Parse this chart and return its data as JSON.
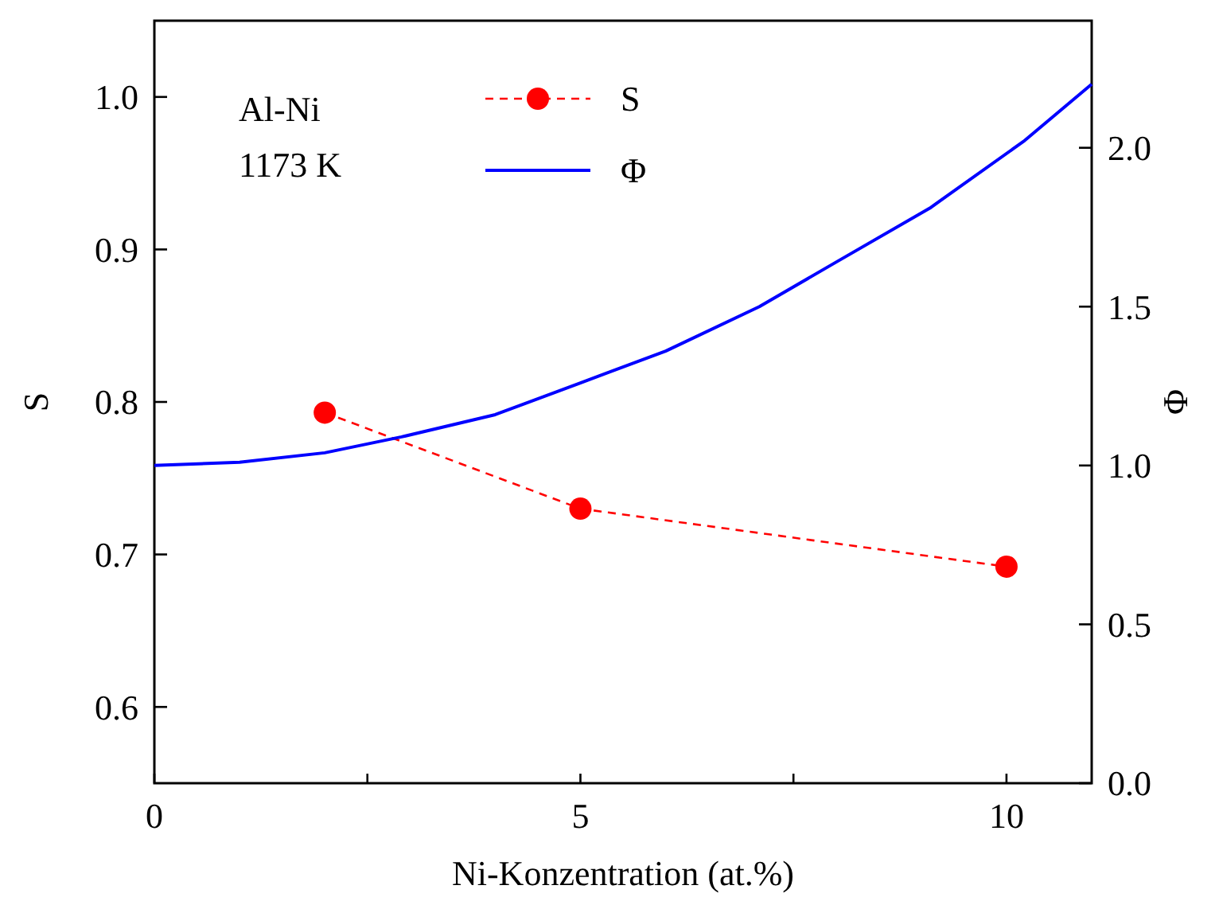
{
  "chart_data": {
    "type": "line",
    "xlabel": "Ni-Konzentration (at.%)",
    "ylabel": "S",
    "y2label": "Φ",
    "xlim": [
      0,
      11
    ],
    "xticks": [
      0,
      {
        "value": 2.5,
        "label": null
      },
      5,
      {
        "value": 7.5,
        "label": null
      },
      10
    ],
    "ylim": [
      0.55,
      1.05
    ],
    "yticks": [
      0.6,
      0.7,
      0.8,
      0.9,
      {
        "value": 1,
        "label": "1.0"
      }
    ],
    "y2lim": [
      0,
      2.4
    ],
    "y2ticks": [
      {
        "value": 0,
        "label": "0.0"
      },
      0.5,
      {
        "value": 1,
        "label": "1.0"
      },
      1.5,
      {
        "value": 2,
        "label": "2.0"
      }
    ],
    "legend": "top",
    "grid": false,
    "annotations": [
      "Al-Ni",
      "1173 K"
    ],
    "series": [
      {
        "name": "S",
        "color": "#ff0000",
        "x": [
          2,
          5,
          10
        ],
        "values": [
          0.793,
          0.73,
          0.692
        ],
        "marker": "circle",
        "line_style": "dashed"
      },
      {
        "name": "Φ",
        "color": "#0000ff",
        "axis": "y2",
        "x": [
          0,
          1,
          2,
          2.9,
          4,
          5,
          6,
          7.1,
          8,
          9.1,
          10.2,
          11
        ],
        "values": [
          1.0,
          1.01,
          1.04,
          1.09,
          1.16,
          1.26,
          1.36,
          1.5,
          1.64,
          1.81,
          2.02,
          2.2
        ],
        "marker": "none",
        "line_style": "solid"
      }
    ]
  }
}
